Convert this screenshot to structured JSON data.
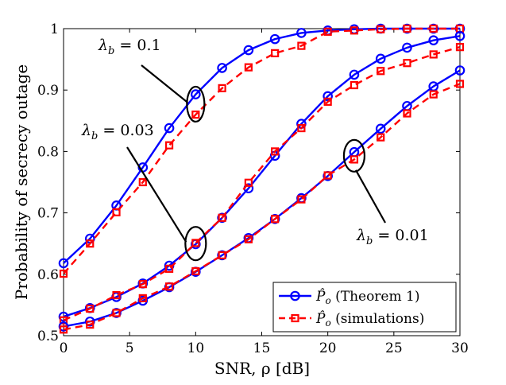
{
  "chart_data": {
    "type": "line",
    "title": "",
    "xlabel": "SNR, ρ [dB]",
    "ylabel": "Probability of secrecy outage",
    "xlim": [
      0,
      30
    ],
    "ylim": [
      0.5,
      1.0
    ],
    "xticks": [
      0,
      5,
      10,
      15,
      20,
      25,
      30
    ],
    "yticks": [
      0.5,
      0.6,
      0.7,
      0.8,
      0.9,
      1.0
    ],
    "xtick_labels": [
      "0",
      "5",
      "10",
      "15",
      "20",
      "25",
      "30"
    ],
    "ytick_labels": [
      "0.5",
      "0.6",
      "0.7",
      "0.8",
      "0.9",
      "1"
    ],
    "grid": false,
    "x": [
      0,
      2,
      4,
      6,
      8,
      10,
      12,
      14,
      16,
      18,
      20,
      22,
      24,
      26,
      28,
      30
    ],
    "series": [
      {
        "name": "P̂o (Theorem 1) λ_b=0.1",
        "legend": "theorem",
        "color": "#0000ff",
        "style": "solid",
        "marker": "circle",
        "values": [
          0.618,
          0.658,
          0.712,
          0.774,
          0.838,
          0.893,
          0.936,
          0.965,
          0.983,
          0.993,
          0.997,
          0.999,
          1.0,
          1.0,
          1.0,
          1.0
        ]
      },
      {
        "name": "P̂o (simulations) λ_b=0.1",
        "legend": "simulations",
        "color": "#ff0000",
        "style": "dashed",
        "marker": "square",
        "values": [
          0.601,
          0.65,
          0.701,
          0.75,
          0.81,
          0.86,
          0.903,
          0.937,
          0.96,
          0.972,
          0.995,
          0.997,
          0.999,
          1.0,
          1.0,
          1.0
        ]
      },
      {
        "name": "P̂o (Theorem 1) λ_b=0.03",
        "legend": "theorem",
        "color": "#0000ff",
        "style": "solid",
        "marker": "circle",
        "values": [
          0.531,
          0.545,
          0.563,
          0.585,
          0.614,
          0.649,
          0.692,
          0.74,
          0.793,
          0.845,
          0.89,
          0.925,
          0.951,
          0.969,
          0.981,
          0.988
        ]
      },
      {
        "name": "P̂o (simulations) λ_b=0.03",
        "legend": "simulations",
        "color": "#ff0000",
        "style": "dashed",
        "marker": "square",
        "values": [
          0.525,
          0.544,
          0.566,
          0.584,
          0.609,
          0.651,
          0.692,
          0.749,
          0.8,
          0.838,
          0.881,
          0.908,
          0.931,
          0.944,
          0.958,
          0.97
        ]
      },
      {
        "name": "P̂o (Theorem 1) λ_b=0.01",
        "legend": "theorem",
        "color": "#0000ff",
        "style": "solid",
        "marker": "circle",
        "values": [
          0.515,
          0.523,
          0.537,
          0.557,
          0.579,
          0.604,
          0.631,
          0.659,
          0.69,
          0.724,
          0.76,
          0.799,
          0.837,
          0.874,
          0.906,
          0.932
        ]
      },
      {
        "name": "P̂o (simulations) λ_b=0.01",
        "legend": "simulations",
        "color": "#ff0000",
        "style": "dashed",
        "marker": "square",
        "values": [
          0.51,
          0.518,
          0.537,
          0.561,
          0.58,
          0.605,
          0.631,
          0.657,
          0.69,
          0.722,
          0.761,
          0.787,
          0.823,
          0.862,
          0.893,
          0.91
        ]
      }
    ],
    "legend": {
      "placement": "bottom-right",
      "items": [
        {
          "symbol": "P̂",
          "subscript": "o",
          "label": " (Theorem 1)",
          "color": "#0000ff",
          "style": "solid",
          "marker": "circle"
        },
        {
          "symbol": "P̂",
          "subscript": "o",
          "label": " (simulations)",
          "color": "#ff0000",
          "style": "dashed",
          "marker": "square"
        }
      ]
    },
    "annotations": [
      {
        "var": "λ",
        "sub": "b",
        "text": " = 0.1",
        "target_x": 10,
        "target_y": 0.877
      },
      {
        "var": "λ",
        "sub": "b",
        "text": " = 0.03",
        "target_x": 10,
        "target_y": 0.65
      },
      {
        "var": "λ",
        "sub": "b",
        "text": " = 0.01",
        "target_x": 22,
        "target_y": 0.793
      }
    ]
  }
}
